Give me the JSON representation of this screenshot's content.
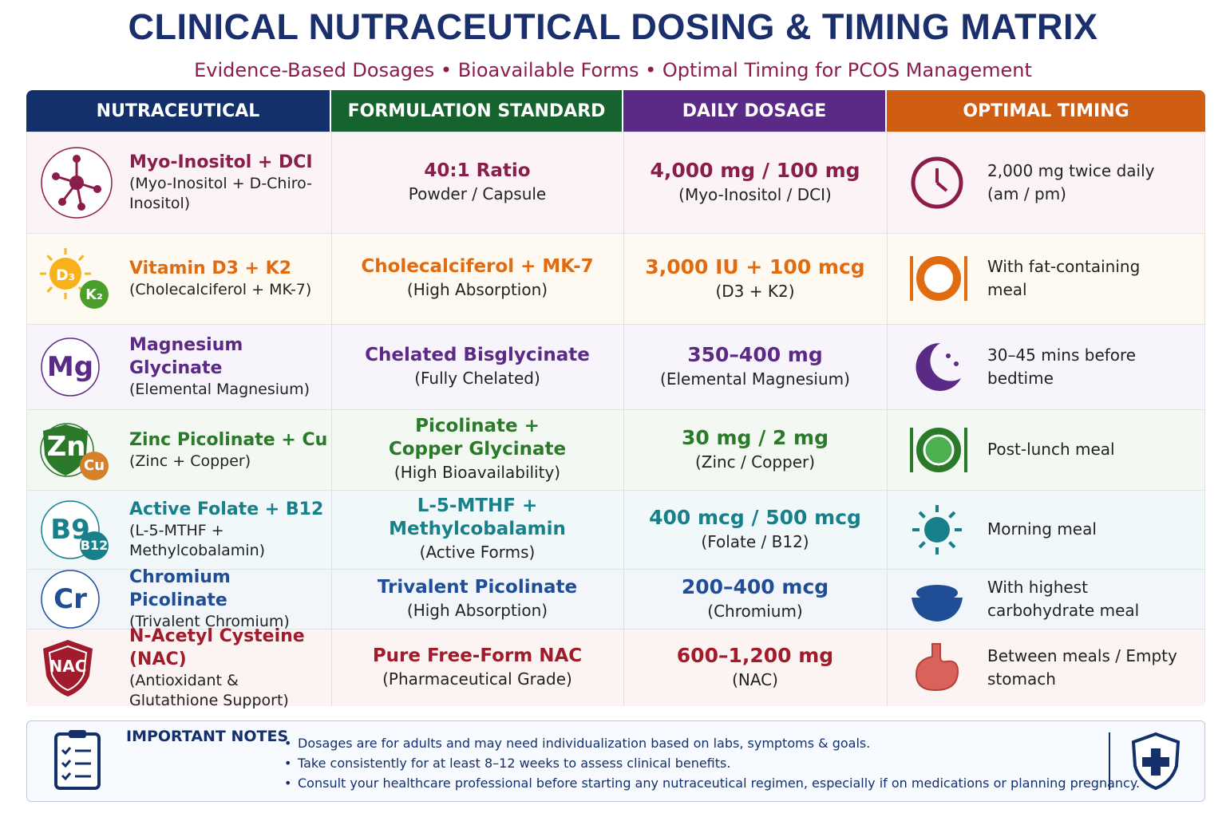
{
  "header": {
    "title": "CLINICAL NUTRACEUTICAL DOSING & TIMING MATRIX",
    "subtitle": "Evidence-Based Dosages • Bioavailable Forms • Optimal Timing for PCOS Management"
  },
  "table": {
    "columns": [
      "NUTRACEUTICAL",
      "FORMULATION STANDARD",
      "DAILY DOSAGE",
      "OPTIMAL TIMING"
    ],
    "rows": [
      {
        "name": "Myo-Inositol + DCI",
        "detail": "(Myo-Inositol + D-Chiro-Inositol)",
        "form": "40:1 Ratio",
        "form_detail": "Powder / Capsule",
        "dose": "4,000 mg / 100 mg",
        "dose_detail": "(Myo-Inositol / DCI)",
        "timing": "2,000 mg twice daily (am / pm)"
      },
      {
        "badges": [
          "D₃",
          "K₂"
        ],
        "name": "Vitamin D3 + K2",
        "detail": "(Cholecalciferol + MK-7)",
        "form": "Cholecalciferol + MK-7",
        "form_detail": "(High Absorption)",
        "dose": "3,000 IU + 100 mcg",
        "dose_detail": "(D3 + K2)",
        "timing": "With fat-containing meal"
      },
      {
        "badges": [
          "Mg"
        ],
        "name": "Magnesium Glycinate",
        "detail": "(Elemental Magnesium)",
        "form": "Chelated Bisglycinate",
        "form_detail": "(Fully Chelated)",
        "dose": "350–400 mg",
        "dose_detail": "(Elemental Magnesium)",
        "timing": "30–45 mins before bedtime"
      },
      {
        "badges": [
          "Zn",
          "Cu"
        ],
        "name": "Zinc Picolinate + Cu",
        "detail": "(Zinc + Copper)",
        "form": "Picolinate + Copper Glycinate",
        "form_detail": "(High Bioavailability)",
        "dose": "30 mg / 2 mg",
        "dose_detail": "(Zinc / Copper)",
        "timing": "Post-lunch meal"
      },
      {
        "badges": [
          "B9",
          "B12"
        ],
        "name": "Active Folate + B12",
        "detail": "(L-5-MTHF + Methylcobalamin)",
        "form": "L-5-MTHF + Methylcobalamin",
        "form_detail": "(Active Forms)",
        "dose": "400 mcg / 500 mcg",
        "dose_detail": "(Folate / B12)",
        "timing": "Morning meal"
      },
      {
        "badges": [
          "Cr"
        ],
        "name": "Chromium Picolinate",
        "detail": "(Trivalent Chromium)",
        "form": "Trivalent Picolinate",
        "form_detail": "(High Absorption)",
        "dose": "200–400 mcg",
        "dose_detail": "(Chromium)",
        "timing": "With highest carbohydrate meal"
      },
      {
        "badges": [
          "NAC"
        ],
        "name": "N-Acetyl Cysteine (NAC)",
        "detail": "(Antioxidant & Glutathione Support)",
        "form": "Pure Free-Form NAC",
        "form_detail": "(Pharmaceutical Grade)",
        "dose": "600–1,200 mg",
        "dose_detail": "(NAC)",
        "timing": "Between meals / Empty stomach"
      }
    ]
  },
  "notes": {
    "title": "IMPORTANT NOTES",
    "items": [
      "Dosages are for adults and may need individualization based on labs, symptoms & goals.",
      "Take consistently for at least 8–12 weeks to assess clinical benefits.",
      "Consult your healthcare professional before starting any nutraceutical regimen, especially if on medications or planning pregnancy."
    ]
  }
}
